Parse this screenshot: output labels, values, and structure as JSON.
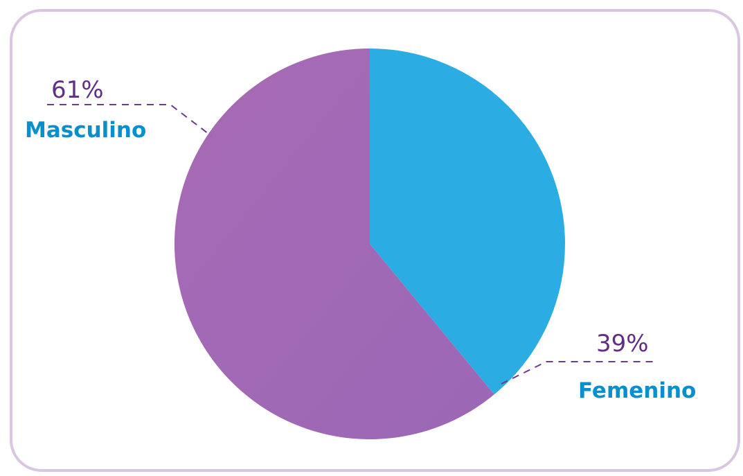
{
  "chart_data": {
    "type": "pie",
    "title": "",
    "start_angle_deg": 0,
    "direction": "clockwise",
    "slices": [
      {
        "label": "Femenino",
        "value": 39,
        "value_label": "39%",
        "color": "#2bace2"
      },
      {
        "label": "Masculino",
        "value": 61,
        "value_label": "61%",
        "color": "#a56ab4"
      }
    ],
    "label_colors": {
      "percent": "#5f2f86",
      "category": "#0a8fcd",
      "leader_line": "#6b3b8e"
    }
  },
  "frame": {
    "border_color": "#d8c6e2"
  }
}
